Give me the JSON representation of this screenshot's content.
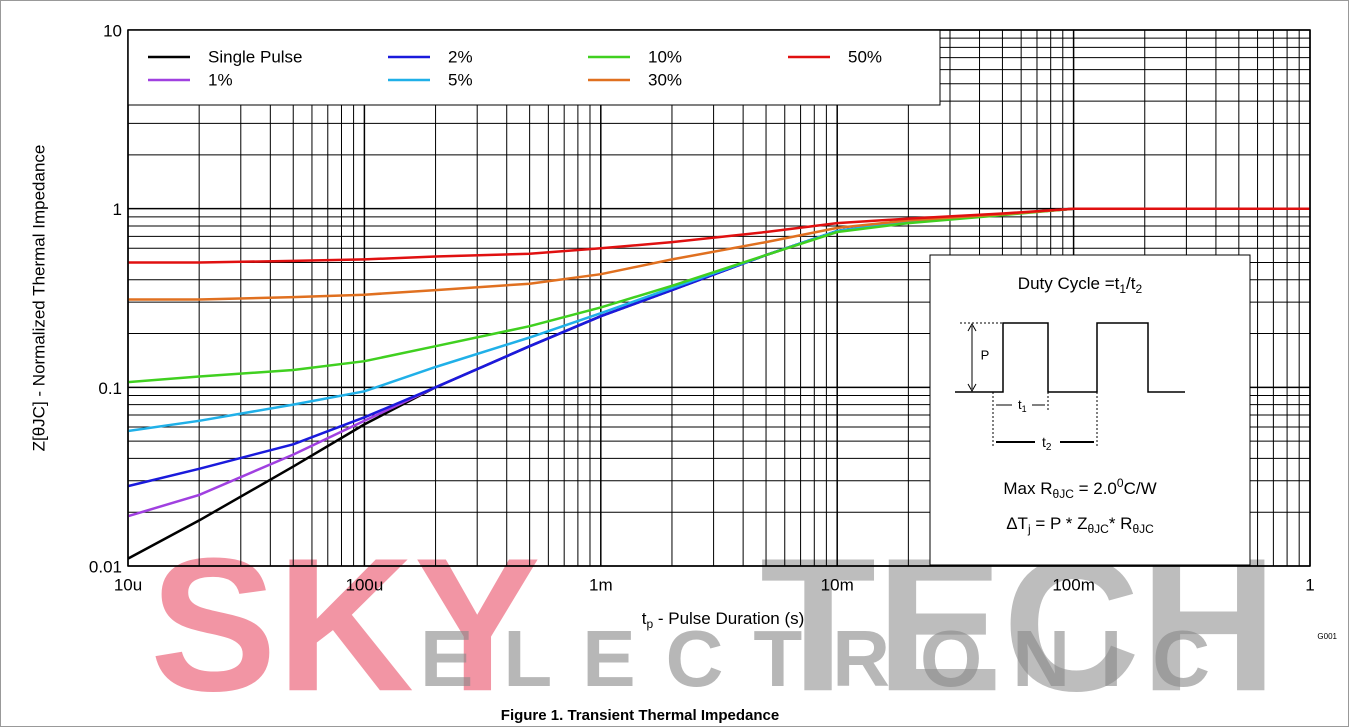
{
  "chart_data": {
    "type": "line",
    "y_label": "Z[θJC] - Normalized Thermal Impedance",
    "x_label": [
      "t",
      "p",
      " - Pulse Duration (s)"
    ],
    "log_x": true,
    "log_y": true,
    "grid": true,
    "minor_grid": true,
    "legend": "upper left",
    "xlim": [
      1e-05,
      1
    ],
    "xticks": [
      {
        "value": 1e-05,
        "label": "10u"
      },
      {
        "value": 0.0001,
        "label": "100u"
      },
      {
        "value": 0.001,
        "label": "1m"
      },
      {
        "value": 0.01,
        "label": "10m"
      },
      {
        "value": 0.1,
        "label": "100m"
      },
      1
    ],
    "ylim": [
      0.01,
      10
    ],
    "yticks": [
      0.01,
      0.1,
      1,
      10
    ],
    "x": [
      1e-05,
      2e-05,
      5e-05,
      0.0001,
      0.0002,
      0.0005,
      0.001,
      0.002,
      0.005,
      0.01,
      0.02,
      0.05,
      0.1,
      1
    ],
    "series": [
      {
        "name": "Single Pulse",
        "color": "#000000",
        "values": [
          0.011,
          0.018,
          0.036,
          0.062,
          0.1,
          0.17,
          0.25,
          0.35,
          0.55,
          0.75,
          0.85,
          0.93,
          1.0,
          1.0
        ]
      },
      {
        "name": "1%",
        "color": "#a040e0",
        "values": [
          0.019,
          0.025,
          0.042,
          0.065,
          0.1,
          0.17,
          0.25,
          0.35,
          0.55,
          0.75,
          0.85,
          0.93,
          1.0,
          1.0
        ]
      },
      {
        "name": "2%",
        "color": "#1a1adc",
        "values": [
          0.028,
          0.035,
          0.048,
          0.068,
          0.1,
          0.17,
          0.25,
          0.35,
          0.55,
          0.75,
          0.85,
          0.93,
          1.0,
          1.0
        ]
      },
      {
        "name": "5%",
        "color": "#20b0e8",
        "values": [
          0.057,
          0.065,
          0.08,
          0.095,
          0.13,
          0.19,
          0.26,
          0.36,
          0.55,
          0.75,
          0.85,
          0.93,
          1.0,
          1.0
        ]
      },
      {
        "name": "10%",
        "color": "#40d020",
        "values": [
          0.107,
          0.115,
          0.125,
          0.14,
          0.17,
          0.22,
          0.28,
          0.37,
          0.55,
          0.74,
          0.83,
          0.92,
          1.0,
          1.0
        ]
      },
      {
        "name": "30%",
        "color": "#e07020",
        "values": [
          0.31,
          0.31,
          0.32,
          0.33,
          0.35,
          0.38,
          0.43,
          0.52,
          0.65,
          0.78,
          0.86,
          0.93,
          1.0,
          1.0
        ]
      },
      {
        "name": "50%",
        "color": "#e01010",
        "values": [
          0.5,
          0.5,
          0.51,
          0.52,
          0.54,
          0.56,
          0.6,
          0.65,
          0.74,
          0.83,
          0.88,
          0.94,
          1.0,
          1.0
        ]
      }
    ],
    "inset": {
      "duty_cycle": [
        "Duty Cycle =t",
        "1",
        "/t",
        "2"
      ],
      "p": "P",
      "t1": [
        "t",
        "1"
      ],
      "t2": [
        "t",
        "2"
      ],
      "max_r": [
        "Max R",
        "θJC",
        " = 2.0",
        "0",
        "C/W"
      ],
      "delta": [
        "ΔT",
        "j",
        " = P * Z",
        "θJC",
        "* R",
        "θJC"
      ]
    },
    "code": "G001",
    "caption": "Figure 1.  Transient Thermal Impedance",
    "watermark": [
      "SKY",
      "TECH",
      "ELECTRONIC"
    ]
  }
}
